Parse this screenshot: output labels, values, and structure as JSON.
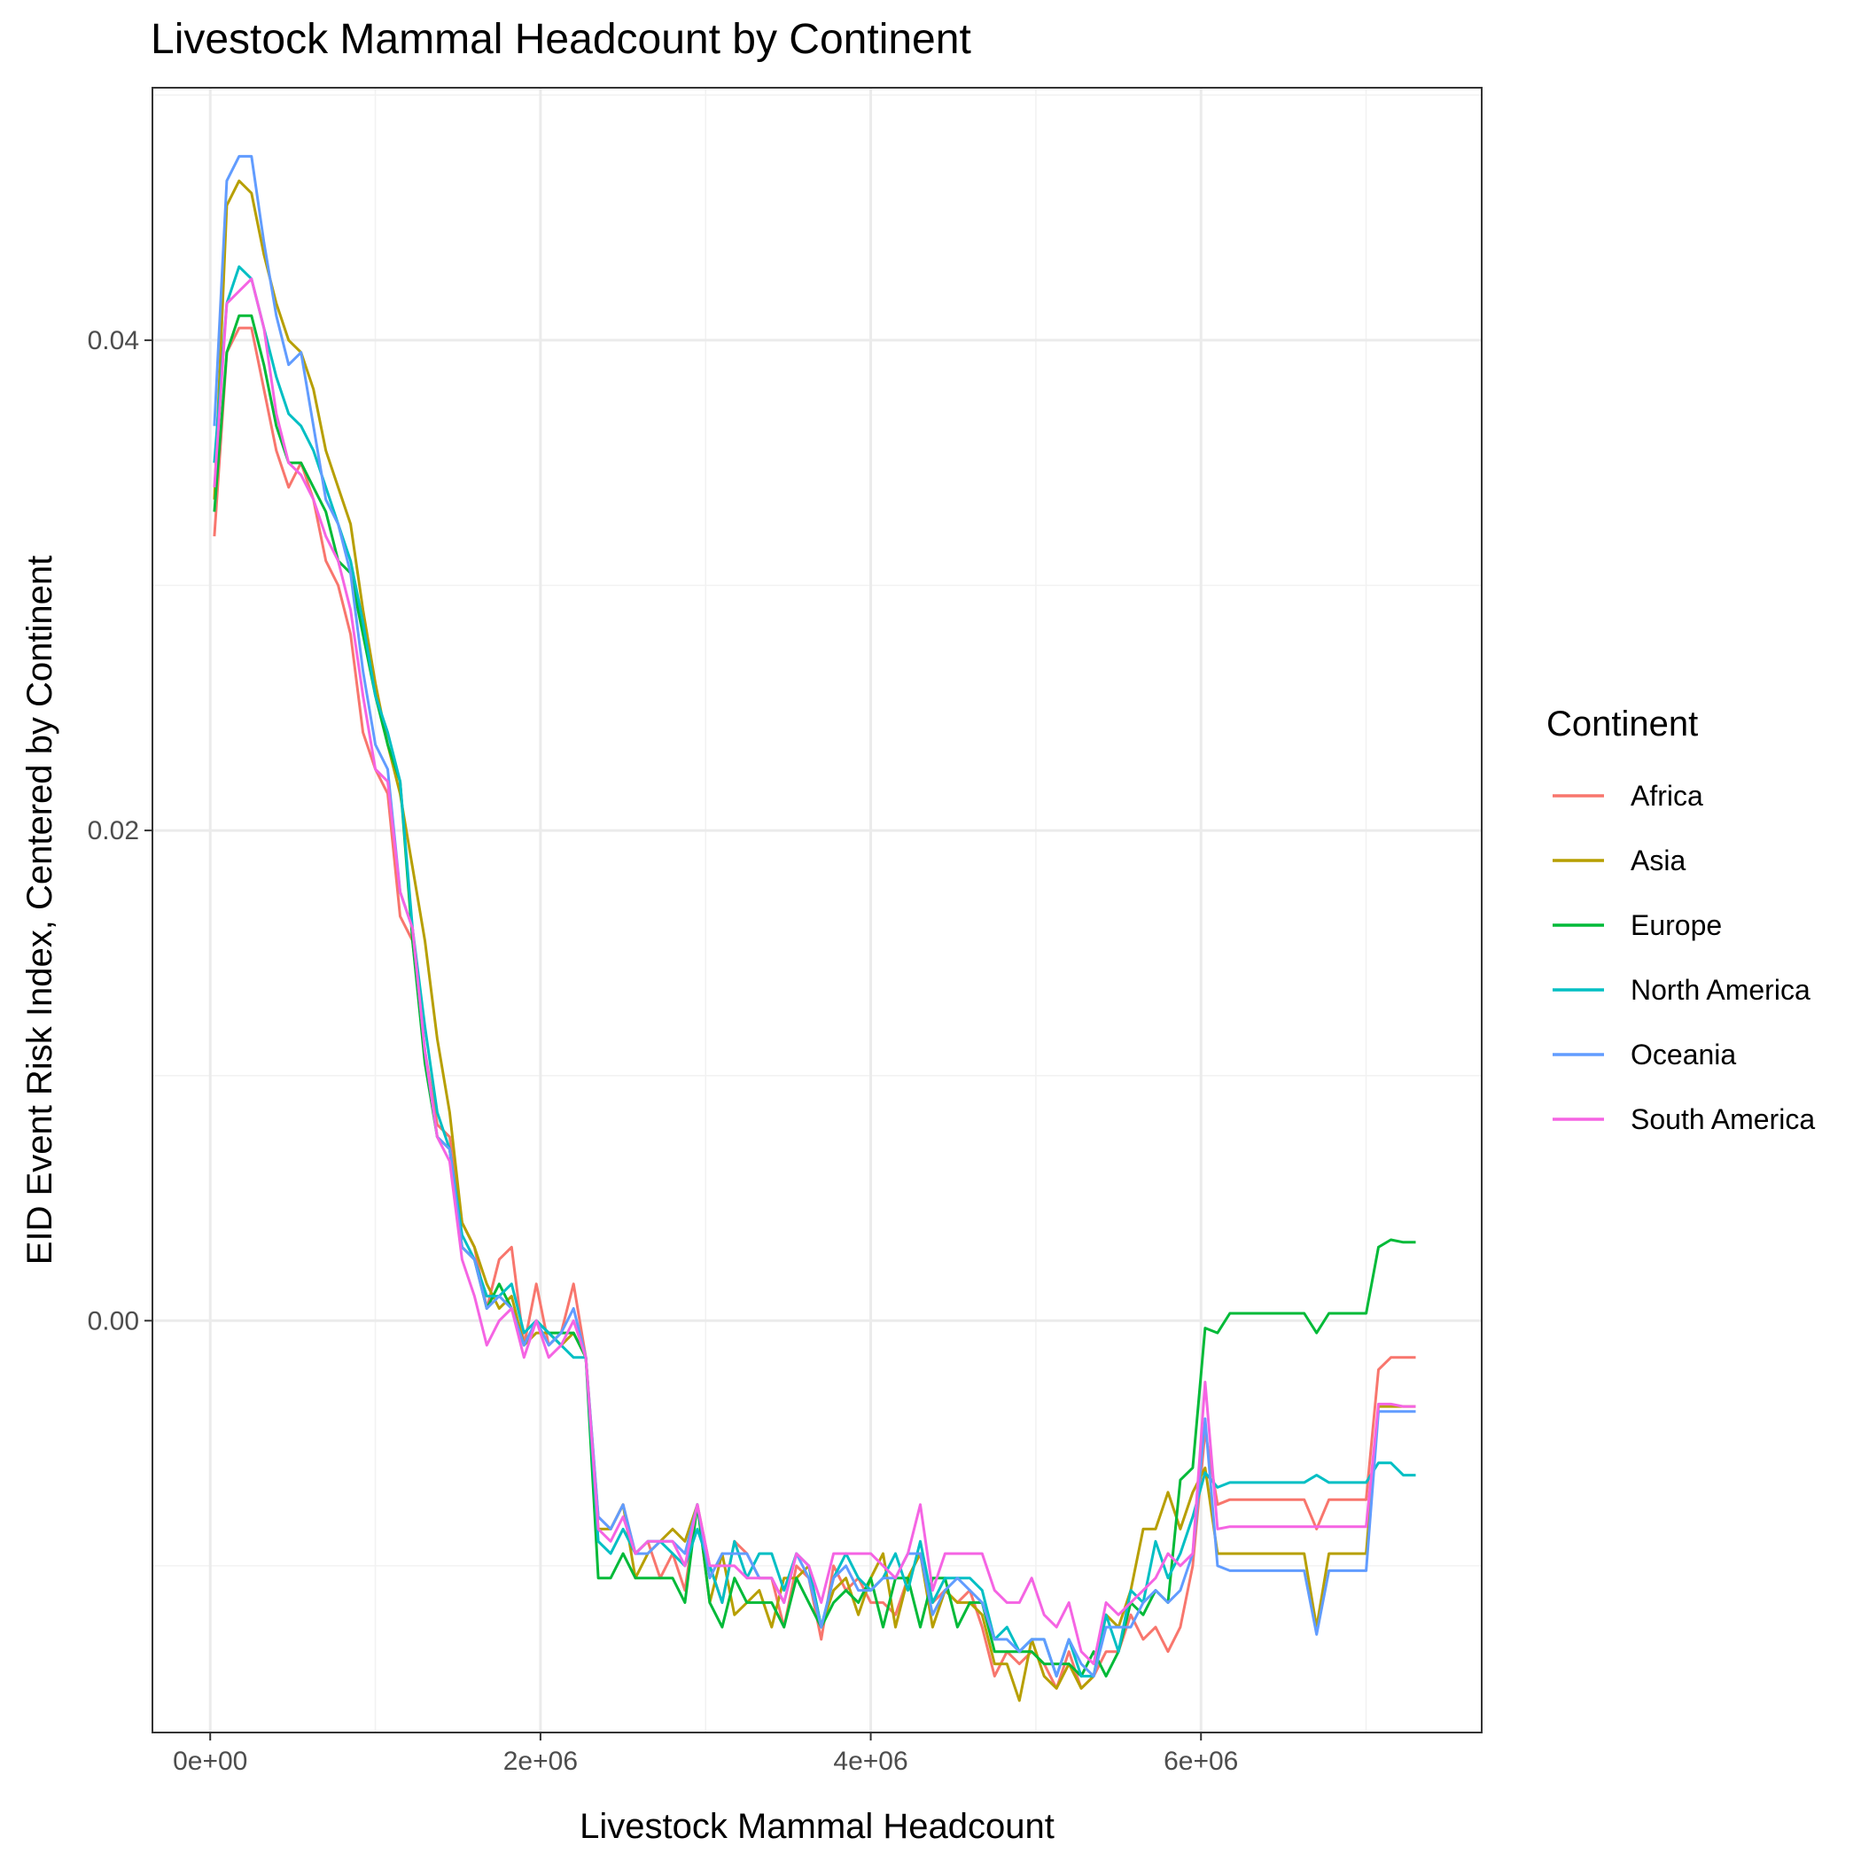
{
  "chart_data": {
    "type": "line",
    "title": "Livestock Mammal Headcount by Continent",
    "xlabel": "Livestock Mammal Headcount",
    "ylabel": "EID Event Risk Index, Centered by Continent",
    "xlim": [
      -350000,
      7700000
    ],
    "ylim": [
      -0.0168,
      0.0503
    ],
    "x_ticks": [
      {
        "value": 0,
        "label": "0e+00"
      },
      {
        "value": 2000000,
        "label": "2e+06"
      },
      {
        "value": 4000000,
        "label": "4e+06"
      },
      {
        "value": 6000000,
        "label": "6e+06"
      }
    ],
    "y_ticks": [
      {
        "value": 0.0,
        "label": "0.00"
      },
      {
        "value": 0.02,
        "label": "0.02"
      },
      {
        "value": 0.04,
        "label": "0.04"
      }
    ],
    "grid": true,
    "legend": {
      "title": "Continent",
      "position": "right"
    },
    "x": [
      25000,
      100000,
      175000,
      250000,
      325000,
      400000,
      475000,
      550000,
      625000,
      700000,
      775000,
      850000,
      925000,
      1000000,
      1075000,
      1150000,
      1225000,
      1300000,
      1375000,
      1450000,
      1525000,
      1600000,
      1675000,
      1750000,
      1825000,
      1900000,
      1975000,
      2050000,
      2125000,
      2200000,
      2275000,
      2350000,
      2425000,
      2500000,
      2575000,
      2650000,
      2725000,
      2800000,
      2875000,
      2950000,
      3025000,
      3100000,
      3175000,
      3250000,
      3325000,
      3400000,
      3475000,
      3550000,
      3625000,
      3700000,
      3775000,
      3850000,
      3925000,
      4000000,
      4075000,
      4150000,
      4225000,
      4300000,
      4375000,
      4450000,
      4525000,
      4600000,
      4675000,
      4750000,
      4825000,
      4900000,
      4975000,
      5050000,
      5125000,
      5200000,
      5275000,
      5350000,
      5425000,
      5500000,
      5575000,
      5650000,
      5725000,
      5800000,
      5875000,
      5950000,
      6025000,
      6100000,
      6175000,
      6250000,
      6325000,
      6400000,
      6475000,
      6550000,
      6625000,
      6700000,
      6775000,
      6850000,
      6925000,
      7000000,
      7075000,
      7150000,
      7225000,
      7300000
    ],
    "series": [
      {
        "name": "Africa",
        "color": "#F8766D",
        "values": [
          0.032,
          0.0395,
          0.0405,
          0.0405,
          0.038,
          0.0355,
          0.034,
          0.035,
          0.0335,
          0.031,
          0.03,
          0.028,
          0.024,
          0.0225,
          0.0215,
          0.0165,
          0.0155,
          0.011,
          0.008,
          0.0075,
          0.004,
          0.003,
          0.0005,
          0.0025,
          0.003,
          -0.001,
          0.0015,
          -0.001,
          -0.0005,
          0.0015,
          -0.0015,
          -0.008,
          -0.0085,
          -0.0075,
          -0.0095,
          -0.009,
          -0.0105,
          -0.0095,
          -0.011,
          -0.0075,
          -0.01,
          -0.0115,
          -0.009,
          -0.0095,
          -0.0105,
          -0.0105,
          -0.0125,
          -0.01,
          -0.0105,
          -0.013,
          -0.01,
          -0.011,
          -0.0105,
          -0.0115,
          -0.0115,
          -0.012,
          -0.0105,
          -0.0095,
          -0.0115,
          -0.011,
          -0.0115,
          -0.011,
          -0.0125,
          -0.0145,
          -0.0135,
          -0.014,
          -0.0135,
          -0.014,
          -0.015,
          -0.0135,
          -0.015,
          -0.0145,
          -0.0135,
          -0.0135,
          -0.012,
          -0.013,
          -0.0125,
          -0.0135,
          -0.0125,
          -0.01,
          -0.0045,
          -0.0075,
          -0.0073,
          -0.0073,
          -0.0073,
          -0.0073,
          -0.0073,
          -0.0073,
          -0.0073,
          -0.0085,
          -0.0073,
          -0.0073,
          -0.0073,
          -0.0073,
          -0.002,
          -0.0015,
          -0.0015,
          -0.0015
        ]
      },
      {
        "name": "Asia",
        "color": "#B79F00",
        "values": [
          0.0335,
          0.0455,
          0.0465,
          0.046,
          0.0435,
          0.0415,
          0.04,
          0.0395,
          0.038,
          0.0355,
          0.034,
          0.0325,
          0.029,
          0.026,
          0.0235,
          0.0215,
          0.0185,
          0.0155,
          0.0115,
          0.0085,
          0.004,
          0.003,
          0.0015,
          0.0005,
          0.001,
          -0.001,
          -0.0005,
          -0.0005,
          -0.001,
          -0.0005,
          -0.0015,
          -0.0085,
          -0.0085,
          -0.0075,
          -0.0105,
          -0.0095,
          -0.009,
          -0.0085,
          -0.009,
          -0.0075,
          -0.0115,
          -0.0095,
          -0.012,
          -0.0115,
          -0.011,
          -0.0125,
          -0.0105,
          -0.0105,
          -0.01,
          -0.0125,
          -0.011,
          -0.0105,
          -0.012,
          -0.0105,
          -0.0095,
          -0.0125,
          -0.0105,
          -0.0095,
          -0.0125,
          -0.011,
          -0.0115,
          -0.0115,
          -0.012,
          -0.014,
          -0.014,
          -0.0155,
          -0.013,
          -0.0145,
          -0.015,
          -0.014,
          -0.015,
          -0.0145,
          -0.012,
          -0.0125,
          -0.011,
          -0.0085,
          -0.0085,
          -0.007,
          -0.0085,
          -0.007,
          -0.006,
          -0.0095,
          -0.0095,
          -0.0095,
          -0.0095,
          -0.0095,
          -0.0095,
          -0.0095,
          -0.0095,
          -0.0125,
          -0.0095,
          -0.0095,
          -0.0095,
          -0.0095,
          -0.0035,
          -0.0035,
          -0.0035,
          -0.0035
        ]
      },
      {
        "name": "Europe",
        "color": "#00BA38",
        "values": [
          0.033,
          0.0395,
          0.041,
          0.041,
          0.039,
          0.0365,
          0.035,
          0.035,
          0.034,
          0.033,
          0.031,
          0.0305,
          0.028,
          0.0255,
          0.0235,
          0.022,
          0.0155,
          0.0105,
          0.0075,
          0.007,
          0.003,
          0.0025,
          0.0005,
          0.0015,
          0.0005,
          -0.001,
          0.0,
          -0.0005,
          -0.0005,
          -0.0005,
          -0.0015,
          -0.0105,
          -0.0105,
          -0.0095,
          -0.0105,
          -0.0105,
          -0.0105,
          -0.0105,
          -0.0115,
          -0.0075,
          -0.0115,
          -0.0125,
          -0.0105,
          -0.0115,
          -0.0115,
          -0.0115,
          -0.0125,
          -0.0105,
          -0.0115,
          -0.0125,
          -0.0115,
          -0.011,
          -0.0115,
          -0.0105,
          -0.0125,
          -0.0105,
          -0.0105,
          -0.0125,
          -0.0105,
          -0.0105,
          -0.0125,
          -0.0115,
          -0.0115,
          -0.0135,
          -0.0135,
          -0.0135,
          -0.0135,
          -0.014,
          -0.014,
          -0.014,
          -0.0145,
          -0.0135,
          -0.0145,
          -0.0135,
          -0.0115,
          -0.012,
          -0.011,
          -0.0115,
          -0.0065,
          -0.006,
          -0.0003,
          -0.0005,
          0.0003,
          0.0003,
          0.0003,
          0.0003,
          0.0003,
          0.0003,
          0.0003,
          -0.0005,
          0.0003,
          0.0003,
          0.0003,
          0.0003,
          0.003,
          0.0033,
          0.0032,
          0.0032
        ]
      },
      {
        "name": "North America",
        "color": "#00BFC4",
        "values": [
          0.035,
          0.0415,
          0.043,
          0.0425,
          0.0405,
          0.0385,
          0.037,
          0.0365,
          0.0355,
          0.034,
          0.0325,
          0.031,
          0.0285,
          0.0255,
          0.024,
          0.022,
          0.016,
          0.012,
          0.0085,
          0.007,
          0.0035,
          0.0025,
          0.001,
          0.001,
          0.0015,
          -0.0005,
          0.0,
          -0.0005,
          -0.001,
          -0.0015,
          -0.0015,
          -0.009,
          -0.0095,
          -0.0085,
          -0.0095,
          -0.009,
          -0.009,
          -0.0095,
          -0.01,
          -0.0085,
          -0.01,
          -0.0115,
          -0.009,
          -0.0105,
          -0.0095,
          -0.0095,
          -0.011,
          -0.0095,
          -0.01,
          -0.0125,
          -0.0105,
          -0.0095,
          -0.0105,
          -0.011,
          -0.0105,
          -0.0095,
          -0.011,
          -0.009,
          -0.0115,
          -0.0105,
          -0.0105,
          -0.0105,
          -0.011,
          -0.013,
          -0.0125,
          -0.0135,
          -0.013,
          -0.013,
          -0.0145,
          -0.013,
          -0.0145,
          -0.0145,
          -0.012,
          -0.0135,
          -0.011,
          -0.0115,
          -0.009,
          -0.0105,
          -0.0095,
          -0.008,
          -0.0062,
          -0.0068,
          -0.0066,
          -0.0066,
          -0.0066,
          -0.0066,
          -0.0066,
          -0.0066,
          -0.0066,
          -0.0063,
          -0.0066,
          -0.0066,
          -0.0066,
          -0.0066,
          -0.0058,
          -0.0058,
          -0.0063,
          -0.0063
        ]
      },
      {
        "name": "Oceania",
        "color": "#619CFF",
        "values": [
          0.0365,
          0.0465,
          0.0475,
          0.0475,
          0.044,
          0.041,
          0.039,
          0.0395,
          0.0365,
          0.0335,
          0.0325,
          0.0305,
          0.0265,
          0.0235,
          0.0225,
          0.0175,
          0.016,
          0.011,
          0.0075,
          0.007,
          0.003,
          0.0025,
          0.0005,
          0.001,
          0.0005,
          -0.001,
          0.0,
          -0.001,
          -0.0005,
          0.0005,
          -0.0015,
          -0.008,
          -0.0085,
          -0.0075,
          -0.0095,
          -0.0095,
          -0.009,
          -0.009,
          -0.0095,
          -0.0075,
          -0.0105,
          -0.0095,
          -0.0095,
          -0.0095,
          -0.0105,
          -0.0105,
          -0.0115,
          -0.0095,
          -0.0105,
          -0.0125,
          -0.0105,
          -0.01,
          -0.011,
          -0.011,
          -0.0105,
          -0.0105,
          -0.0095,
          -0.0095,
          -0.012,
          -0.011,
          -0.0105,
          -0.011,
          -0.0115,
          -0.013,
          -0.013,
          -0.0135,
          -0.013,
          -0.013,
          -0.0145,
          -0.013,
          -0.014,
          -0.0145,
          -0.0125,
          -0.0125,
          -0.0125,
          -0.0115,
          -0.011,
          -0.0115,
          -0.011,
          -0.0095,
          -0.004,
          -0.01,
          -0.0102,
          -0.0102,
          -0.0102,
          -0.0102,
          -0.0102,
          -0.0102,
          -0.0102,
          -0.0128,
          -0.0102,
          -0.0102,
          -0.0102,
          -0.0102,
          -0.0037,
          -0.0037,
          -0.0037,
          -0.0037
        ]
      },
      {
        "name": "South America",
        "color": "#F564E3",
        "values": [
          0.034,
          0.0415,
          0.042,
          0.0425,
          0.0405,
          0.037,
          0.035,
          0.0345,
          0.0335,
          0.032,
          0.031,
          0.029,
          0.0255,
          0.0225,
          0.022,
          0.0175,
          0.016,
          0.011,
          0.0075,
          0.0065,
          0.0025,
          0.001,
          -0.001,
          0.0,
          0.0005,
          -0.0015,
          0.0,
          -0.0015,
          -0.001,
          0.0,
          -0.0015,
          -0.0085,
          -0.009,
          -0.008,
          -0.0095,
          -0.009,
          -0.009,
          -0.009,
          -0.01,
          -0.0075,
          -0.01,
          -0.01,
          -0.01,
          -0.0105,
          -0.0105,
          -0.0105,
          -0.0115,
          -0.0095,
          -0.01,
          -0.0115,
          -0.0095,
          -0.0095,
          -0.0095,
          -0.0095,
          -0.01,
          -0.0105,
          -0.0095,
          -0.0075,
          -0.011,
          -0.0095,
          -0.0095,
          -0.0095,
          -0.0095,
          -0.011,
          -0.0115,
          -0.0115,
          -0.0105,
          -0.012,
          -0.0125,
          -0.0115,
          -0.0135,
          -0.014,
          -0.0115,
          -0.012,
          -0.0115,
          -0.011,
          -0.0105,
          -0.0095,
          -0.01,
          -0.0095,
          -0.0025,
          -0.0085,
          -0.0084,
          -0.0084,
          -0.0084,
          -0.0084,
          -0.0084,
          -0.0084,
          -0.0084,
          -0.0084,
          -0.0084,
          -0.0084,
          -0.0084,
          -0.0084,
          -0.0034,
          -0.0034,
          -0.0035,
          -0.0035
        ]
      }
    ]
  }
}
